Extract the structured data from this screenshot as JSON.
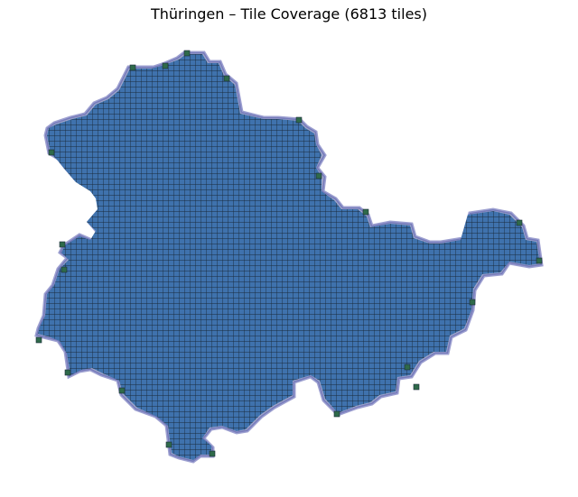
{
  "title": "Thüringen – Tile Coverage (6813 tiles)",
  "colors": {
    "tile_fill": "#3f72ad",
    "grid_line": "#1a2a3a",
    "boundary_fill": "#2c3a8a",
    "boundary_stroke": "#5a5fb0",
    "edge_tile": "#2f6a4a"
  },
  "map": {
    "region": "Thüringen",
    "tile_count": 6813
  }
}
